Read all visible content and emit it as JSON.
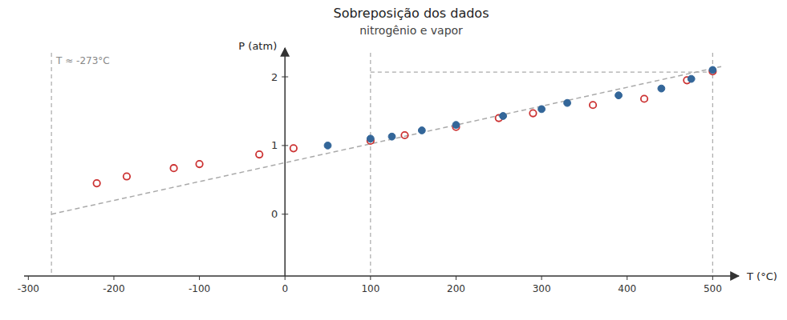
{
  "chart_data": {
    "type": "scatter",
    "title": "Sobreposição dos dados",
    "subtitle": "nitrogênio e vapor",
    "xlabel": "T (°C)",
    "ylabel": "P (atm)",
    "xlim": [
      -305,
      525
    ],
    "ylim": [
      -0.9,
      2.35
    ],
    "xticks": [
      -300,
      -200,
      -100,
      0,
      100,
      200,
      300,
      400,
      500
    ],
    "yticks": [
      0,
      1,
      2
    ],
    "grid": false,
    "series": [
      {
        "type": "line",
        "line_style": "dashed",
        "color": "#aaaaaa",
        "x": [
          -273,
          510
        ],
        "values": [
          0.0,
          2.15
        ]
      },
      {
        "type": "scatter",
        "marker": "circle-open",
        "color": "#CC3333",
        "x": [
          -220,
          -185,
          -130,
          -100,
          -30,
          10,
          100,
          140,
          200,
          250,
          290,
          360,
          420,
          470,
          500
        ],
        "values": [
          0.45,
          0.55,
          0.67,
          0.73,
          0.87,
          0.96,
          1.07,
          1.15,
          1.27,
          1.4,
          1.47,
          1.59,
          1.68,
          1.95,
          2.08
        ]
      },
      {
        "type": "scatter",
        "marker": "circle",
        "color": "#336699",
        "x": [
          50,
          100,
          125,
          160,
          200,
          255,
          300,
          330,
          390,
          440,
          475,
          500
        ],
        "values": [
          1.0,
          1.1,
          1.13,
          1.22,
          1.3,
          1.43,
          1.53,
          1.62,
          1.73,
          1.83,
          1.97,
          2.1
        ]
      }
    ],
    "reference_lines": [
      {
        "x": -273,
        "label": "T ≈ -273°C"
      },
      {
        "x": 100
      },
      {
        "x": 500
      },
      {
        "y": 2.07,
        "x_range": [
          100,
          500
        ]
      }
    ]
  }
}
